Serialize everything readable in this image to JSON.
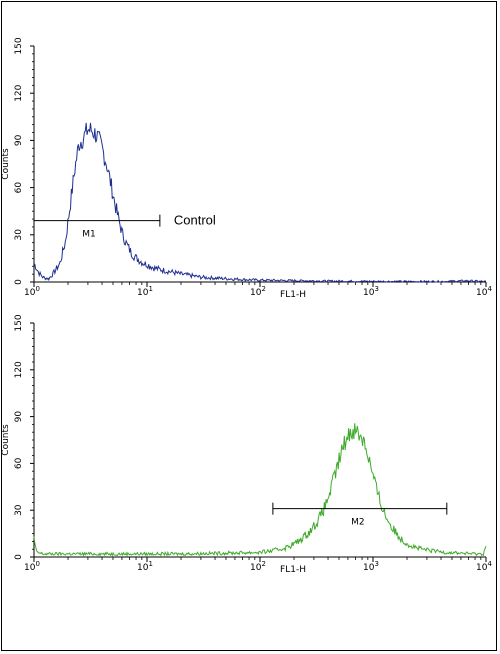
{
  "chart_data": [
    {
      "type": "line",
      "xlabel": "FL1-H",
      "ylabel": "Counts",
      "x_scale": "log",
      "xlim": [
        1,
        10000
      ],
      "ylim": [
        0,
        150
      ],
      "yticks": [
        "0",
        "30",
        "60",
        "90",
        "120",
        "150"
      ],
      "xticks": [
        {
          "base": "10",
          "exp": "0"
        },
        {
          "base": "10",
          "exp": "1"
        },
        {
          "base": "10",
          "exp": "2"
        },
        {
          "base": "10",
          "exp": "3"
        },
        {
          "base": "10",
          "exp": "4"
        }
      ],
      "series": [
        {
          "color": "#1f2f8f",
          "x": [
            1.0,
            1.1,
            1.2,
            1.35,
            1.5,
            1.7,
            1.9,
            2.1,
            2.3,
            2.5,
            2.75,
            3.0,
            3.3,
            3.6,
            4.0,
            4.4,
            4.8,
            5.2,
            5.6,
            6.1,
            6.6,
            7.2,
            7.8,
            8.5,
            9.3,
            10.2,
            11.5,
            13,
            15,
            17.5,
            20,
            25,
            30,
            40,
            55,
            75,
            100,
            150,
            250,
            400,
            700,
            1000,
            2000,
            4000,
            7000,
            10000
          ],
          "y": [
            12,
            6,
            3,
            2,
            6,
            12,
            26,
            50,
            72,
            88,
            92,
            97,
            96,
            93,
            85,
            75,
            62,
            50,
            40,
            30,
            24,
            19,
            16,
            14,
            12,
            11,
            9,
            8,
            7,
            6,
            5,
            4,
            3,
            2.5,
            2,
            1.5,
            1.2,
            1,
            0.8,
            0.6,
            0.5,
            0.4,
            0.3,
            0.3,
            0.8,
            0.2
          ]
        }
      ],
      "annotations": [
        {
          "label": "M1",
          "x_start": 1.0,
          "x_end": 13.0,
          "y": 39
        },
        {
          "label": "Control",
          "x": 13.0,
          "y": 39
        }
      ]
    },
    {
      "type": "line",
      "xlabel": "FL1-H",
      "ylabel": "Counts",
      "x_scale": "log",
      "xlim": [
        1,
        10000
      ],
      "ylim": [
        0,
        150
      ],
      "yticks": [
        "0",
        "30",
        "60",
        "90",
        "120",
        "150"
      ],
      "xticks": [
        {
          "base": "10",
          "exp": "0"
        },
        {
          "base": "10",
          "exp": "1"
        },
        {
          "base": "10",
          "exp": "2"
        },
        {
          "base": "10",
          "exp": "3"
        },
        {
          "base": "10",
          "exp": "4"
        }
      ],
      "series": [
        {
          "color": "#3faa2a",
          "x": [
            1.0,
            1.05,
            1.2,
            2,
            5,
            10,
            20,
            50,
            100,
            130,
            170,
            220,
            280,
            330,
            380,
            430,
            480,
            530,
            580,
            630,
            680,
            730,
            780,
            840,
            900,
            970,
            1050,
            1150,
            1300,
            1500,
            1800,
            2200,
            2700,
            3300,
            4500,
            6000,
            8000,
            9500,
            10000
          ],
          "y": [
            12,
            3,
            2,
            2,
            2,
            2,
            2,
            2.5,
            3,
            4,
            6,
            10,
            17,
            24,
            33,
            45,
            57,
            68,
            76,
            80,
            82,
            80,
            78,
            74,
            66,
            56,
            46,
            36,
            26,
            18,
            11,
            7,
            5,
            4,
            3,
            2.5,
            2,
            2,
            8
          ]
        }
      ],
      "annotations": [
        {
          "label": "M2",
          "x_start": 130,
          "x_end": 4500,
          "y": 31
        }
      ]
    }
  ]
}
